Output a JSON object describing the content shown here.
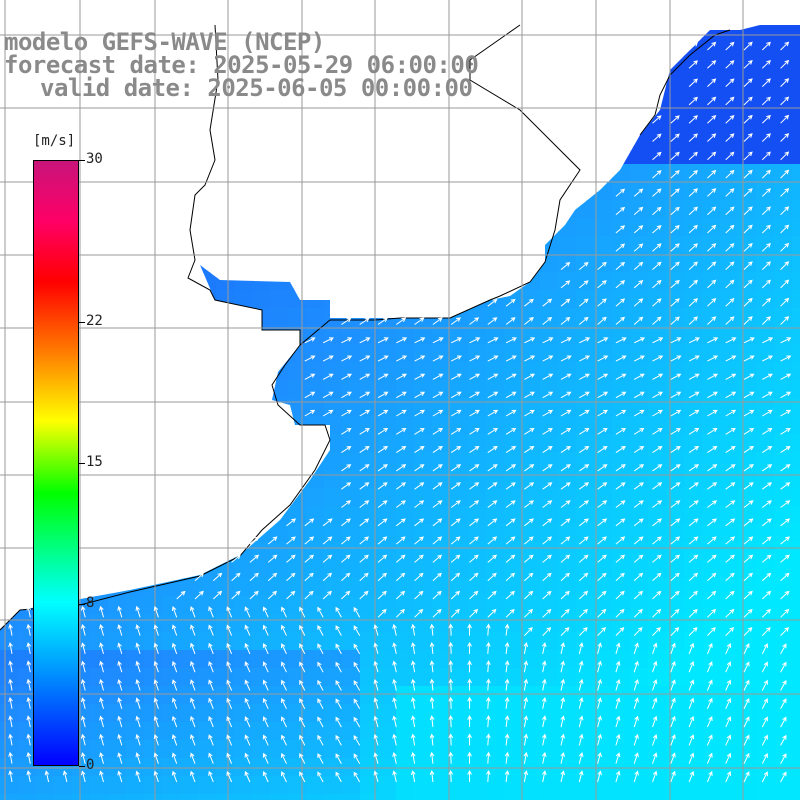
{
  "header": {
    "line1": "modelo GEFS-WAVE (NCEP)",
    "line2": "forecast date: 2025-05-29 06:00:00",
    "line3": "valid date: 2025-06-05 00:00:00"
  },
  "colorbar": {
    "unit": "[m/s]",
    "ticks": [
      {
        "label": "30",
        "value": 30
      },
      {
        "label": "22",
        "value": 22
      },
      {
        "label": "15",
        "value": 15
      },
      {
        "label": "8",
        "value": 8
      },
      {
        "label": "0",
        "value": 0
      }
    ],
    "min": 0,
    "max": 30
  },
  "map": {
    "ocean_low_color": "#1040f0",
    "ocean_high_color": "#00e8ff",
    "land_color": "#ffffff",
    "coast_color": "#000000",
    "grid_color": "#9a9a9a",
    "arrow_color": "#ffffff",
    "grid_lines": "on"
  }
}
